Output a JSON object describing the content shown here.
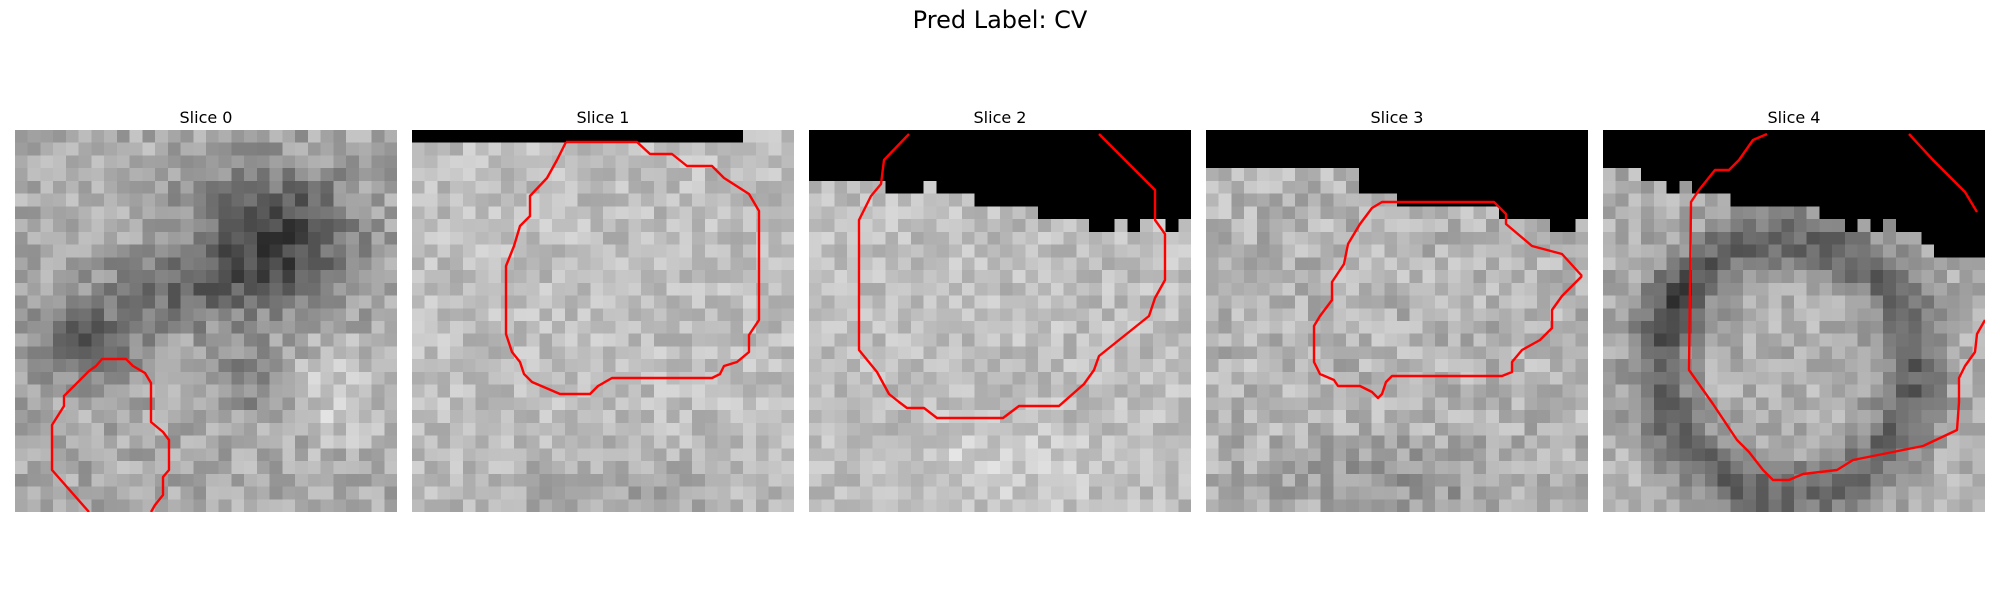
{
  "figure": {
    "title": "Pred Label: CV"
  },
  "panels": [
    {
      "title": "Slice 0"
    },
    {
      "title": "Slice 1"
    },
    {
      "title": "Slice 2"
    },
    {
      "title": "Slice 3"
    },
    {
      "title": "Slice 4"
    }
  ],
  "colors": {
    "contour": "#ff0000",
    "background": "#ffffff",
    "masked_region": "#000000"
  }
}
